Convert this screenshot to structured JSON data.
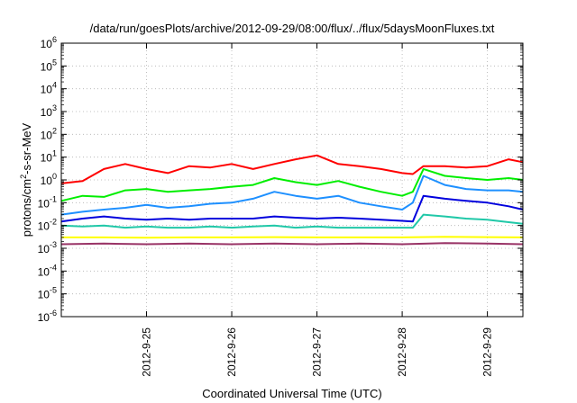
{
  "chart_data": {
    "type": "line",
    "title": "/data/run/goesPlots/archive/2012-09-29/08:00/flux/../flux/5daysMoonFluxes.txt",
    "xlabel": "Coordinated Universal Time (UTC)",
    "ylabel_main": "protons/cm",
    "ylabel_sup": "2",
    "ylabel_rest": "-s-sr-MeV",
    "x_scale": "time",
    "xlim": [
      "2012-09-24T00:00",
      "2012-09-29T10:00"
    ],
    "x_ticks": [
      "2012-9-25",
      "2012-9-26",
      "2012-9-27",
      "2012-9-28",
      "2012-9-29"
    ],
    "x_tick_dates": [
      "2012-09-25T00:00",
      "2012-09-26T00:00",
      "2012-09-27T00:00",
      "2012-09-28T00:00",
      "2012-09-29T00:00"
    ],
    "y_scale": "log",
    "ylim": [
      1e-06,
      1000000.0
    ],
    "y_tick_exponents": [
      -6,
      -5,
      -4,
      -3,
      -2,
      -1,
      0,
      1,
      2,
      3,
      4,
      5,
      6
    ],
    "grid": true,
    "legend": false,
    "series": [
      {
        "color": "#ff0000",
        "x": [
          "2012-09-24T00:00",
          "2012-09-24T06:00",
          "2012-09-24T12:00",
          "2012-09-24T18:00",
          "2012-09-25T00:00",
          "2012-09-25T06:00",
          "2012-09-25T12:00",
          "2012-09-25T18:00",
          "2012-09-26T00:00",
          "2012-09-26T06:00",
          "2012-09-26T12:00",
          "2012-09-26T18:00",
          "2012-09-27T00:00",
          "2012-09-27T06:00",
          "2012-09-27T12:00",
          "2012-09-27T18:00",
          "2012-09-28T00:00",
          "2012-09-28T03:00",
          "2012-09-28T06:00",
          "2012-09-28T12:00",
          "2012-09-28T18:00",
          "2012-09-29T00:00",
          "2012-09-29T06:00",
          "2012-09-29T10:00"
        ],
        "y": [
          0.7,
          0.9,
          3,
          5,
          3,
          2,
          4,
          3.5,
          5,
          3,
          5,
          8,
          12,
          5,
          4,
          3,
          2,
          1.8,
          4,
          4,
          3.5,
          4,
          8,
          6
        ]
      },
      {
        "color": "#00ee00",
        "x": [
          "2012-09-24T00:00",
          "2012-09-24T06:00",
          "2012-09-24T12:00",
          "2012-09-24T18:00",
          "2012-09-25T00:00",
          "2012-09-25T06:00",
          "2012-09-25T12:00",
          "2012-09-25T18:00",
          "2012-09-26T00:00",
          "2012-09-26T06:00",
          "2012-09-26T12:00",
          "2012-09-26T18:00",
          "2012-09-27T00:00",
          "2012-09-27T06:00",
          "2012-09-27T12:00",
          "2012-09-27T18:00",
          "2012-09-28T00:00",
          "2012-09-28T03:00",
          "2012-09-28T06:00",
          "2012-09-28T12:00",
          "2012-09-28T18:00",
          "2012-09-29T00:00",
          "2012-09-29T06:00",
          "2012-09-29T10:00"
        ],
        "y": [
          0.12,
          0.2,
          0.18,
          0.35,
          0.4,
          0.3,
          0.35,
          0.4,
          0.5,
          0.6,
          1.2,
          0.8,
          0.6,
          0.9,
          0.5,
          0.3,
          0.2,
          0.3,
          3,
          1.5,
          1.2,
          1.0,
          1.2,
          1.0
        ]
      },
      {
        "color": "#1e90ff",
        "x": [
          "2012-09-24T00:00",
          "2012-09-24T06:00",
          "2012-09-24T12:00",
          "2012-09-24T18:00",
          "2012-09-25T00:00",
          "2012-09-25T06:00",
          "2012-09-25T12:00",
          "2012-09-25T18:00",
          "2012-09-26T00:00",
          "2012-09-26T06:00",
          "2012-09-26T12:00",
          "2012-09-26T18:00",
          "2012-09-27T00:00",
          "2012-09-27T06:00",
          "2012-09-27T12:00",
          "2012-09-27T18:00",
          "2012-09-28T00:00",
          "2012-09-28T03:00",
          "2012-09-28T06:00",
          "2012-09-28T12:00",
          "2012-09-28T18:00",
          "2012-09-29T00:00",
          "2012-09-29T06:00",
          "2012-09-29T10:00"
        ],
        "y": [
          0.03,
          0.04,
          0.05,
          0.06,
          0.08,
          0.06,
          0.07,
          0.09,
          0.1,
          0.15,
          0.3,
          0.2,
          0.15,
          0.2,
          0.1,
          0.07,
          0.05,
          0.1,
          1.5,
          0.6,
          0.4,
          0.35,
          0.35,
          0.3
        ]
      },
      {
        "color": "#0000dd",
        "x": [
          "2012-09-24T00:00",
          "2012-09-24T06:00",
          "2012-09-24T12:00",
          "2012-09-24T18:00",
          "2012-09-25T00:00",
          "2012-09-25T06:00",
          "2012-09-25T12:00",
          "2012-09-25T18:00",
          "2012-09-26T00:00",
          "2012-09-26T06:00",
          "2012-09-26T12:00",
          "2012-09-26T18:00",
          "2012-09-27T00:00",
          "2012-09-27T06:00",
          "2012-09-27T12:00",
          "2012-09-27T18:00",
          "2012-09-28T00:00",
          "2012-09-28T03:00",
          "2012-09-28T06:00",
          "2012-09-28T12:00",
          "2012-09-28T18:00",
          "2012-09-29T00:00",
          "2012-09-29T06:00",
          "2012-09-29T10:00"
        ],
        "y": [
          0.015,
          0.02,
          0.025,
          0.02,
          0.018,
          0.02,
          0.018,
          0.02,
          0.02,
          0.02,
          0.025,
          0.022,
          0.02,
          0.022,
          0.02,
          0.018,
          0.016,
          0.015,
          0.2,
          0.15,
          0.12,
          0.1,
          0.07,
          0.05
        ]
      },
      {
        "color": "#20c8a8",
        "x": [
          "2012-09-24T00:00",
          "2012-09-24T06:00",
          "2012-09-24T12:00",
          "2012-09-24T18:00",
          "2012-09-25T00:00",
          "2012-09-25T06:00",
          "2012-09-25T12:00",
          "2012-09-25T18:00",
          "2012-09-26T00:00",
          "2012-09-26T06:00",
          "2012-09-26T12:00",
          "2012-09-26T18:00",
          "2012-09-27T00:00",
          "2012-09-27T06:00",
          "2012-09-27T12:00",
          "2012-09-27T18:00",
          "2012-09-28T00:00",
          "2012-09-28T03:00",
          "2012-09-28T06:00",
          "2012-09-28T12:00",
          "2012-09-28T18:00",
          "2012-09-29T00:00",
          "2012-09-29T06:00",
          "2012-09-29T10:00"
        ],
        "y": [
          0.01,
          0.009,
          0.01,
          0.008,
          0.009,
          0.008,
          0.008,
          0.009,
          0.008,
          0.009,
          0.01,
          0.008,
          0.009,
          0.008,
          0.008,
          0.008,
          0.008,
          0.008,
          0.03,
          0.025,
          0.02,
          0.018,
          0.014,
          0.012
        ]
      },
      {
        "color": "#ffff00",
        "x": [
          "2012-09-24T00:00",
          "2012-09-24T12:00",
          "2012-09-25T00:00",
          "2012-09-25T12:00",
          "2012-09-26T00:00",
          "2012-09-26T12:00",
          "2012-09-27T00:00",
          "2012-09-27T12:00",
          "2012-09-28T00:00",
          "2012-09-28T12:00",
          "2012-09-29T00:00",
          "2012-09-29T10:00"
        ],
        "y": [
          0.003,
          0.003,
          0.0029,
          0.003,
          0.003,
          0.0031,
          0.003,
          0.003,
          0.003,
          0.0032,
          0.0031,
          0.003
        ]
      },
      {
        "color": "#993366",
        "x": [
          "2012-09-24T00:00",
          "2012-09-24T12:00",
          "2012-09-25T00:00",
          "2012-09-25T12:00",
          "2012-09-26T00:00",
          "2012-09-26T12:00",
          "2012-09-27T00:00",
          "2012-09-27T12:00",
          "2012-09-28T00:00",
          "2012-09-28T12:00",
          "2012-09-29T00:00",
          "2012-09-29T10:00"
        ],
        "y": [
          0.0015,
          0.0016,
          0.0015,
          0.0016,
          0.0015,
          0.0016,
          0.0015,
          0.0016,
          0.0015,
          0.0017,
          0.0016,
          0.0015
        ]
      }
    ]
  }
}
